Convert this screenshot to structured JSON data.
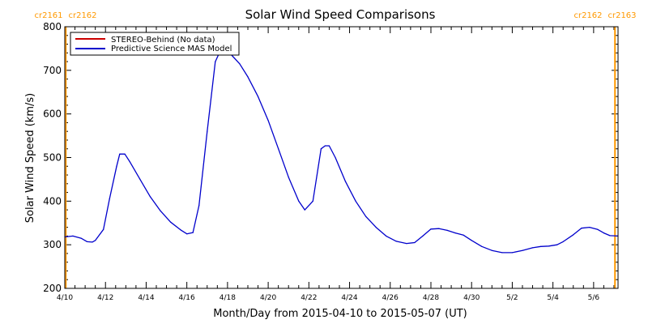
{
  "chart_data": {
    "type": "line",
    "title": "Solar Wind Speed Comparisons",
    "xlabel": "Month/Day from 2015-04-10 to 2015-05-07 (UT)",
    "ylabel": "Solar Wind Speed (km/s)",
    "ylim": [
      200,
      800
    ],
    "yticks": [
      200,
      300,
      400,
      500,
      600,
      700,
      800
    ],
    "xlim_days": [
      0,
      27.2
    ],
    "xticks": [
      {
        "day": 0,
        "label": "4/10"
      },
      {
        "day": 2,
        "label": "4/12"
      },
      {
        "day": 4,
        "label": "4/14"
      },
      {
        "day": 6,
        "label": "4/16"
      },
      {
        "day": 8,
        "label": "4/18"
      },
      {
        "day": 10,
        "label": "4/20"
      },
      {
        "day": 12,
        "label": "4/22"
      },
      {
        "day": 14,
        "label": "4/24"
      },
      {
        "day": 16,
        "label": "4/26"
      },
      {
        "day": 18,
        "label": "4/28"
      },
      {
        "day": 20,
        "label": "4/30"
      },
      {
        "day": 22,
        "label": "5/2"
      },
      {
        "day": 24,
        "label": "5/4"
      },
      {
        "day": 26,
        "label": "5/6"
      }
    ],
    "legend_position": "top-left",
    "legend": [
      {
        "label": "STEREO-Behind (No data)",
        "color": "#cc0000"
      },
      {
        "label": "Predictive Science MAS Model",
        "color": "#0000cc"
      }
    ],
    "carrington_markers": [
      {
        "day": 0.05,
        "left_label": "cr2161",
        "right_label": "cr2162",
        "color": "#ff9900"
      },
      {
        "day": 27.05,
        "left_label": "cr2162",
        "right_label": "cr2163",
        "color": "#ff9900"
      }
    ],
    "series": [
      {
        "name": "Predictive Science MAS Model",
        "color": "#0000cc",
        "points": [
          [
            0.0,
            318
          ],
          [
            0.4,
            320
          ],
          [
            0.8,
            315
          ],
          [
            1.1,
            307
          ],
          [
            1.35,
            306
          ],
          [
            1.5,
            310
          ],
          [
            1.9,
            335
          ],
          [
            2.2,
            405
          ],
          [
            2.55,
            480
          ],
          [
            2.7,
            508
          ],
          [
            2.95,
            508
          ],
          [
            3.2,
            490
          ],
          [
            3.7,
            450
          ],
          [
            4.2,
            410
          ],
          [
            4.7,
            378
          ],
          [
            5.2,
            352
          ],
          [
            5.7,
            334
          ],
          [
            6.0,
            325
          ],
          [
            6.3,
            328
          ],
          [
            6.6,
            390
          ],
          [
            7.0,
            560
          ],
          [
            7.4,
            720
          ],
          [
            7.6,
            740
          ],
          [
            7.9,
            740
          ],
          [
            8.2,
            735
          ],
          [
            8.6,
            715
          ],
          [
            9.0,
            685
          ],
          [
            9.5,
            640
          ],
          [
            10.0,
            585
          ],
          [
            10.5,
            520
          ],
          [
            11.0,
            455
          ],
          [
            11.5,
            400
          ],
          [
            11.8,
            380
          ],
          [
            12.2,
            400
          ],
          [
            12.6,
            520
          ],
          [
            12.8,
            527
          ],
          [
            13.0,
            527
          ],
          [
            13.3,
            500
          ],
          [
            13.8,
            445
          ],
          [
            14.3,
            400
          ],
          [
            14.8,
            365
          ],
          [
            15.3,
            340
          ],
          [
            15.8,
            320
          ],
          [
            16.3,
            308
          ],
          [
            16.8,
            303
          ],
          [
            17.2,
            305
          ],
          [
            17.6,
            320
          ],
          [
            18.0,
            336
          ],
          [
            18.4,
            337
          ],
          [
            18.8,
            333
          ],
          [
            19.2,
            327
          ],
          [
            19.6,
            322
          ],
          [
            20.0,
            310
          ],
          [
            20.5,
            296
          ],
          [
            21.0,
            287
          ],
          [
            21.5,
            282
          ],
          [
            22.0,
            282
          ],
          [
            22.5,
            287
          ],
          [
            23.0,
            293
          ],
          [
            23.4,
            296
          ],
          [
            23.8,
            297
          ],
          [
            24.2,
            300
          ],
          [
            24.5,
            307
          ],
          [
            25.0,
            323
          ],
          [
            25.4,
            338
          ],
          [
            25.8,
            340
          ],
          [
            26.2,
            335
          ],
          [
            26.5,
            327
          ],
          [
            26.8,
            321
          ],
          [
            27.2,
            320
          ]
        ]
      }
    ]
  }
}
